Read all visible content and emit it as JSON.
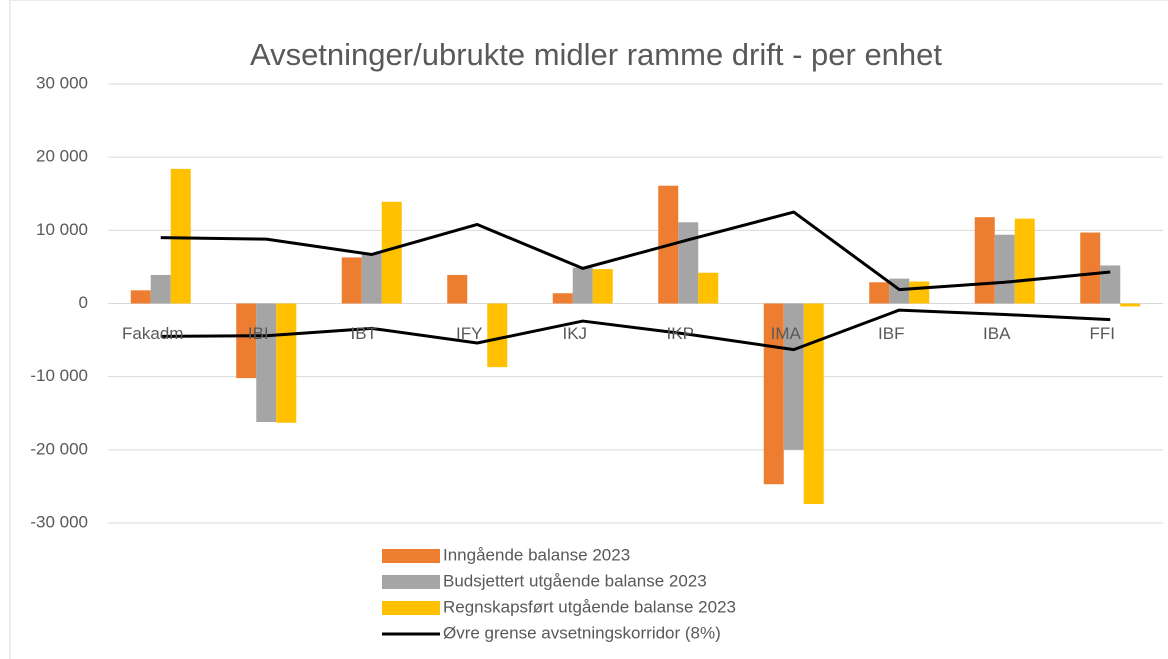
{
  "chart_data": {
    "type": "bar",
    "title": "Avsetninger/ubrukte midler ramme drift - per enhet",
    "categories": [
      "Fakadm",
      "IBI",
      "IBT",
      "IFY",
      "IKJ",
      "IKP",
      "IMA",
      "IBF",
      "IBA",
      "FFI"
    ],
    "series": [
      {
        "name": "Inngående balanse 2023",
        "type": "bar",
        "color": "#ed7d31",
        "values": [
          1800,
          -10200,
          6300,
          3900,
          1400,
          16100,
          -24700,
          2900,
          11800,
          9700
        ]
      },
      {
        "name": "Budsjettert utgående balanse 2023",
        "type": "bar",
        "color": "#a5a5a5",
        "values": [
          3900,
          -16200,
          6800,
          0,
          4900,
          11100,
          -20000,
          3400,
          9400,
          5200
        ]
      },
      {
        "name": "Regnskapsført utgående balanse 2023",
        "type": "bar",
        "color": "#ffc000",
        "values": [
          18400,
          -16300,
          13900,
          -8700,
          4700,
          4200,
          -27400,
          3000,
          11600,
          -400
        ]
      },
      {
        "name": "Øvre grense avsetningskorridor (8%)",
        "type": "line",
        "color": "#000000",
        "values": [
          9000,
          8800,
          6700,
          10800,
          4800,
          8700,
          12500,
          1900,
          2900,
          4300
        ]
      },
      {
        "type": "line",
        "color": "#000000",
        "values": [
          -4500,
          -4400,
          -3400,
          -5400,
          -2400,
          -4200,
          -6300,
          -900,
          -1500,
          -2200
        ]
      }
    ],
    "ylim": [
      -30000,
      30000
    ],
    "yticks": [
      {
        "value": -30000,
        "label": "-30 000"
      },
      {
        "value": -20000,
        "label": "-20 000"
      },
      {
        "value": -10000,
        "label": "-10 000"
      },
      0,
      {
        "value": 10000,
        "label": "10 000"
      },
      {
        "value": 20000,
        "label": "20 000"
      },
      {
        "value": 30000,
        "label": "30 000"
      }
    ],
    "grid": true,
    "legend": "bottom"
  }
}
